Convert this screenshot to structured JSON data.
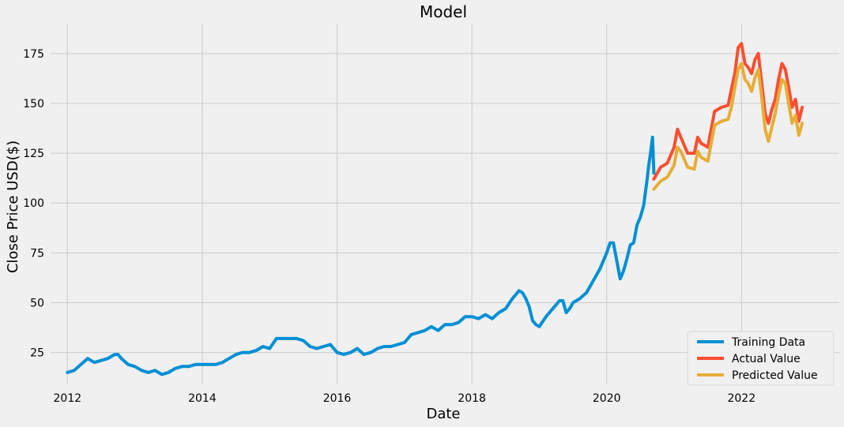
{
  "chart_data": {
    "type": "line",
    "title": "Model",
    "xlabel": "Date",
    "ylabel": "Close Price USD($)",
    "xlim": [
      2011.75,
      2023.45
    ],
    "ylim": [
      9,
      190
    ],
    "grid": true,
    "legend_position": "bottom-right",
    "x_ticks": [
      2012,
      2014,
      2016,
      2018,
      2020,
      2022
    ],
    "y_ticks": [
      25,
      50,
      75,
      100,
      125,
      150,
      175
    ],
    "series": [
      {
        "name": "Training Data",
        "color": "#008fd5",
        "x": [
          2012.0,
          2012.1,
          2012.2,
          2012.3,
          2012.4,
          2012.5,
          2012.6,
          2012.7,
          2012.75,
          2012.8,
          2012.9,
          2013.0,
          2013.1,
          2013.2,
          2013.3,
          2013.4,
          2013.5,
          2013.6,
          2013.7,
          2013.8,
          2013.9,
          2014.0,
          2014.1,
          2014.2,
          2014.3,
          2014.4,
          2014.5,
          2014.6,
          2014.7,
          2014.8,
          2014.9,
          2015.0,
          2015.1,
          2015.2,
          2015.3,
          2015.4,
          2015.5,
          2015.6,
          2015.7,
          2015.8,
          2015.9,
          2016.0,
          2016.1,
          2016.2,
          2016.3,
          2016.4,
          2016.5,
          2016.6,
          2016.7,
          2016.8,
          2016.9,
          2017.0,
          2017.1,
          2017.2,
          2017.3,
          2017.4,
          2017.5,
          2017.6,
          2017.7,
          2017.8,
          2017.9,
          2018.0,
          2018.1,
          2018.2,
          2018.3,
          2018.4,
          2018.5,
          2018.6,
          2018.7,
          2018.75,
          2018.8,
          2018.85,
          2018.9,
          2018.95,
          2019.0,
          2019.1,
          2019.2,
          2019.3,
          2019.35,
          2019.4,
          2019.45,
          2019.5,
          2019.6,
          2019.7,
          2019.8,
          2019.9,
          2020.0,
          2020.05,
          2020.1,
          2020.15,
          2020.2,
          2020.25,
          2020.3,
          2020.35,
          2020.4,
          2020.45,
          2020.5,
          2020.55,
          2020.6,
          2020.62,
          2020.65,
          2020.68,
          2020.7
        ],
        "values": [
          15,
          16,
          19,
          22,
          20,
          21,
          22,
          24,
          24,
          22,
          19,
          18,
          16,
          15,
          16,
          14,
          15,
          17,
          18,
          18,
          19,
          19,
          19,
          19,
          20,
          22,
          24,
          25,
          25,
          26,
          28,
          27,
          32,
          32,
          32,
          32,
          31,
          28,
          27,
          28,
          29,
          25,
          24,
          25,
          27,
          24,
          25,
          27,
          28,
          28,
          29,
          30,
          34,
          35,
          36,
          38,
          36,
          39,
          39,
          40,
          43,
          43,
          42,
          44,
          42,
          45,
          47,
          52,
          56,
          55,
          52,
          48,
          41,
          39,
          38,
          43,
          47,
          51,
          51,
          45,
          47,
          50,
          52,
          55,
          61,
          67,
          75,
          80,
          80,
          71,
          62,
          66,
          72,
          79,
          80,
          89,
          93,
          99,
          112,
          118,
          125,
          133,
          115
        ]
      },
      {
        "name": "Actual Value",
        "color": "#fc4f30",
        "x": [
          2020.7,
          2020.8,
          2020.9,
          2021.0,
          2021.05,
          2021.1,
          2021.2,
          2021.3,
          2021.35,
          2021.4,
          2021.5,
          2021.6,
          2021.7,
          2021.8,
          2021.85,
          2021.9,
          2021.95,
          2022.0,
          2022.05,
          2022.1,
          2022.15,
          2022.2,
          2022.25,
          2022.3,
          2022.35,
          2022.4,
          2022.45,
          2022.5,
          2022.55,
          2022.6,
          2022.65,
          2022.7,
          2022.75,
          2022.8,
          2022.85,
          2022.9
        ],
        "values": [
          112,
          118,
          120,
          128,
          137,
          133,
          125,
          125,
          133,
          130,
          128,
          146,
          148,
          149,
          157,
          165,
          178,
          180,
          170,
          168,
          165,
          172,
          175,
          160,
          145,
          140,
          147,
          152,
          162,
          170,
          167,
          158,
          148,
          152,
          141,
          148
        ]
      },
      {
        "name": "Predicted Value",
        "color": "#e5ae38",
        "x": [
          2020.7,
          2020.8,
          2020.9,
          2021.0,
          2021.05,
          2021.1,
          2021.2,
          2021.3,
          2021.35,
          2021.4,
          2021.5,
          2021.6,
          2021.7,
          2021.8,
          2021.85,
          2021.9,
          2021.95,
          2022.0,
          2022.05,
          2022.1,
          2022.15,
          2022.2,
          2022.25,
          2022.3,
          2022.35,
          2022.4,
          2022.45,
          2022.5,
          2022.55,
          2022.6,
          2022.65,
          2022.7,
          2022.75,
          2022.8,
          2022.85,
          2022.9
        ],
        "values": [
          107,
          111,
          113,
          119,
          128,
          126,
          118,
          117,
          126,
          123,
          121,
          139,
          141,
          142,
          148,
          158,
          167,
          170,
          162,
          160,
          156,
          163,
          167,
          153,
          137,
          131,
          138,
          145,
          154,
          162,
          160,
          150,
          140,
          144,
          134,
          140
        ]
      }
    ]
  }
}
